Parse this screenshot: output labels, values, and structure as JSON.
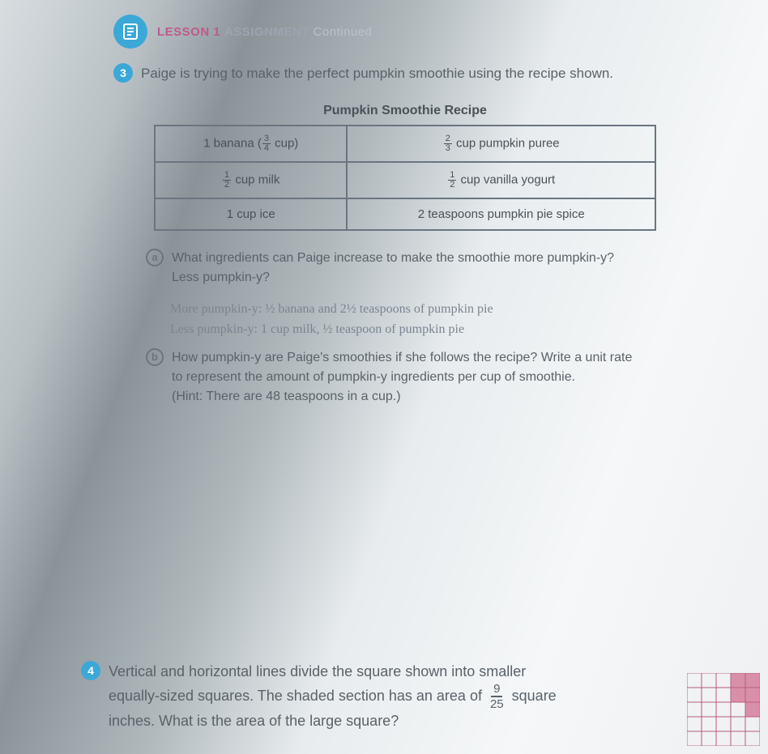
{
  "header": {
    "lesson": "LESSON 1",
    "assignment": "ASSIGNMENT",
    "continued": "Continued"
  },
  "q3": {
    "number": "3",
    "text_before": "Paige is trying to make the perfect pumpkin smoothie using the recipe shown."
  },
  "recipe": {
    "title": "Pumpkin Smoothie Recipe",
    "rows": [
      {
        "left_pre": "1 banana (",
        "left_num": "3",
        "left_den": "4",
        "left_post": " cup)",
        "right_num": "2",
        "right_den": "3",
        "right_post": " cup pumpkin puree"
      },
      {
        "left_num": "1",
        "left_den": "2",
        "left_post": " cup milk",
        "right_num": "1",
        "right_den": "2",
        "right_post": " cup vanilla yogurt"
      },
      {
        "left_plain": "1 cup ice",
        "right_plain": "2 teaspoons pumpkin pie spice"
      }
    ]
  },
  "sub_a": {
    "letter": "a",
    "line1": "What ingredients can Paige increase to make the smoothie more pumpkin-y?",
    "line2": "Less pumpkin-y?"
  },
  "handwriting": {
    "line1": "More pumpkin-y: ½ banana and 2½ teaspoons of pumpkin pie",
    "line2": "Less pumpkin-y: 1 cup milk, ½ teaspoon of pumpkin pie"
  },
  "sub_b": {
    "letter": "b",
    "line1": "How pumpkin-y are Paige's smoothies if she follows the recipe? Write a unit rate",
    "line2": "to represent the amount of pumpkin-y ingredients per cup of smoothie.",
    "hint": "(Hint: There are 48 teaspoons in a cup.)"
  },
  "q4": {
    "number": "4",
    "text1": "Vertical and horizontal lines divide the square shown into smaller",
    "text2a": "equally-sized squares. The shaded section has an area of ",
    "frac_num": "9",
    "frac_den": "25",
    "text2b": " square",
    "text3": "inches. What is the area of the large square?"
  },
  "grid": {
    "size": 5,
    "shaded": [
      [
        3,
        0
      ],
      [
        4,
        0
      ],
      [
        3,
        1
      ],
      [
        4,
        1
      ],
      [
        4,
        2
      ]
    ],
    "stroke": "#b85a7a",
    "fill": "#d890a8"
  }
}
